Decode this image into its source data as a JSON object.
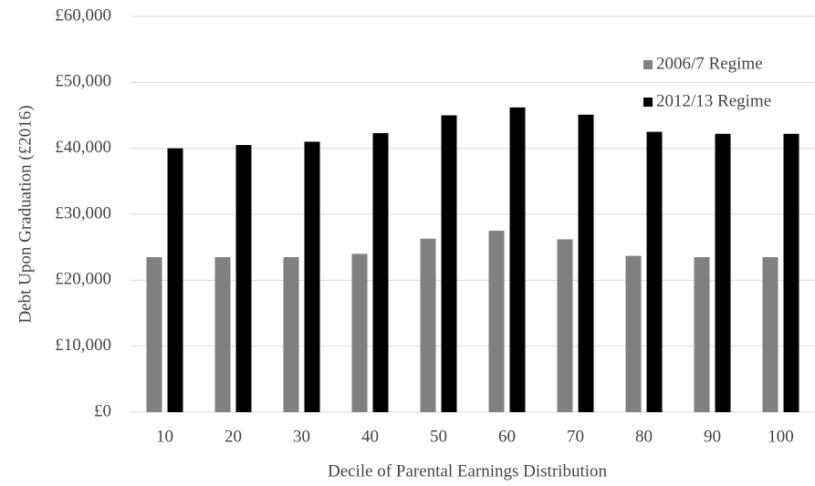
{
  "chart_data": {
    "type": "bar",
    "x_label": "Decile of Parental Earnings Distribution",
    "y_label": "Debt Upon Graduation (£2016)",
    "categories": [
      "10",
      "20",
      "30",
      "40",
      "50",
      "60",
      "70",
      "80",
      "90",
      "100"
    ],
    "series": [
      {
        "name": "2006/7 Regime",
        "color": "#808080",
        "values": [
          23500,
          23500,
          23500,
          24000,
          26300,
          27500,
          26200,
          23700,
          23500,
          23500
        ]
      },
      {
        "name": "2012/13 Regime",
        "color": "#000000",
        "values": [
          40000,
          40500,
          41000,
          42300,
          45000,
          46200,
          45100,
          42500,
          42200,
          42200
        ]
      }
    ],
    "ylim": [
      0,
      60000
    ],
    "yticks": [
      {
        "value": 0,
        "label": "£0"
      },
      {
        "value": 10000,
        "label": "£10,000"
      },
      {
        "value": 20000,
        "label": "£20,000"
      },
      {
        "value": 30000,
        "label": "£30,000"
      },
      {
        "value": 40000,
        "label": "£40,000"
      },
      {
        "value": 50000,
        "label": "£50,000"
      },
      {
        "value": 60000,
        "label": "£60,000"
      }
    ],
    "grid": true,
    "legend": "top-right"
  }
}
